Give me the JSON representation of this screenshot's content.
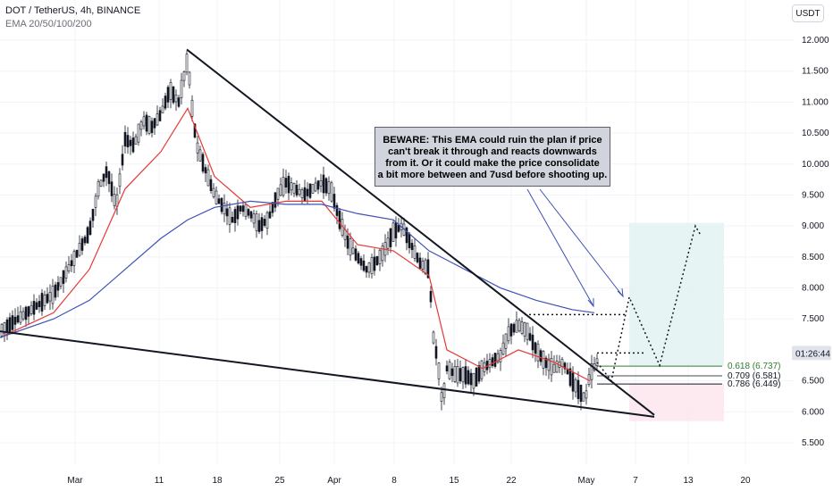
{
  "header": {
    "title": "DOT / TetherUS, 4h, BINANCE",
    "indicator": "EMA 20/50/100/200",
    "currency_button": "USDT"
  },
  "annotation": {
    "lines": [
      "BEWARE: This EMA could ruin the plan if price",
      "can't break it through and reacts downwards",
      " from it. Or it could make the price consolidate",
      " a bit more between and 7usd before shooting up."
    ]
  },
  "price_tag": {
    "label": "01:26:44",
    "color": "#e0e3eb"
  },
  "colors": {
    "candle_up": "#131722",
    "candle_down": "#131722",
    "ema_red": "#e53935",
    "ema_blue": "#3f51b5",
    "trendline": "#131722",
    "fib_green": "#2e7d32",
    "target_zone": "#e0f2f1",
    "stop_zone": "#fce4ec"
  },
  "chart_data": {
    "type": "candlestick",
    "title": "DOT / TetherUS, 4h, BINANCE",
    "y_axis": {
      "ticks": [
        "12.000",
        "11.500",
        "11.000",
        "10.500",
        "10.000",
        "9.500",
        "9.000",
        "8.500",
        "8.000",
        "7.500",
        "6.500",
        "6.000",
        "5.500"
      ],
      "range": [
        5.35,
        12.2
      ]
    },
    "x_axis": {
      "ticks": [
        "Mar",
        "11",
        "18",
        "25",
        "Apr",
        "8",
        "15",
        "22",
        "May",
        "7",
        "13",
        "20"
      ]
    },
    "price_path": [
      [
        0,
        7.3
      ],
      [
        20,
        7.5
      ],
      [
        40,
        7.7
      ],
      [
        60,
        7.9
      ],
      [
        80,
        8.4
      ],
      [
        100,
        8.9
      ],
      [
        110,
        9.6
      ],
      [
        120,
        9.9
      ],
      [
        130,
        9.3
      ],
      [
        140,
        10.4
      ],
      [
        150,
        10.3
      ],
      [
        160,
        10.7
      ],
      [
        170,
        10.6
      ],
      [
        180,
        10.8
      ],
      [
        190,
        11.2
      ],
      [
        200,
        11.0
      ],
      [
        210,
        11.7
      ],
      [
        215,
        10.9
      ],
      [
        220,
        10.3
      ],
      [
        230,
        9.9
      ],
      [
        240,
        9.5
      ],
      [
        250,
        9.3
      ],
      [
        260,
        9.1
      ],
      [
        270,
        9.3
      ],
      [
        280,
        9.2
      ],
      [
        290,
        9.0
      ],
      [
        300,
        9.1
      ],
      [
        310,
        9.5
      ],
      [
        320,
        9.7
      ],
      [
        330,
        9.6
      ],
      [
        340,
        9.5
      ],
      [
        350,
        9.6
      ],
      [
        360,
        9.7
      ],
      [
        370,
        9.6
      ],
      [
        380,
        9.1
      ],
      [
        390,
        8.7
      ],
      [
        400,
        8.5
      ],
      [
        410,
        8.3
      ],
      [
        420,
        8.4
      ],
      [
        430,
        8.6
      ],
      [
        440,
        8.9
      ],
      [
        450,
        9.0
      ],
      [
        460,
        8.7
      ],
      [
        470,
        8.4
      ],
      [
        480,
        8.3
      ],
      [
        485,
        7.2
      ],
      [
        490,
        6.8
      ],
      [
        495,
        6.1
      ],
      [
        500,
        6.7
      ],
      [
        510,
        6.6
      ],
      [
        520,
        6.6
      ],
      [
        530,
        6.5
      ],
      [
        540,
        6.7
      ],
      [
        550,
        6.8
      ],
      [
        560,
        6.9
      ],
      [
        570,
        7.3
      ],
      [
        580,
        7.4
      ],
      [
        590,
        7.3
      ],
      [
        600,
        7.0
      ],
      [
        610,
        6.8
      ],
      [
        620,
        6.7
      ],
      [
        630,
        6.8
      ],
      [
        640,
        6.5
      ],
      [
        650,
        6.3
      ],
      [
        655,
        6.2
      ],
      [
        660,
        6.6
      ],
      [
        668,
        6.8
      ]
    ],
    "ema_red": [
      [
        0,
        7.2
      ],
      [
        60,
        7.6
      ],
      [
        100,
        8.3
      ],
      [
        140,
        9.6
      ],
      [
        180,
        10.2
      ],
      [
        210,
        10.9
      ],
      [
        240,
        9.8
      ],
      [
        280,
        9.3
      ],
      [
        320,
        9.4
      ],
      [
        360,
        9.4
      ],
      [
        400,
        8.7
      ],
      [
        440,
        8.6
      ],
      [
        480,
        8.2
      ],
      [
        500,
        7.0
      ],
      [
        540,
        6.7
      ],
      [
        580,
        7.0
      ],
      [
        620,
        6.8
      ],
      [
        660,
        6.5
      ]
    ],
    "ema_blue": [
      [
        0,
        7.2
      ],
      [
        60,
        7.5
      ],
      [
        100,
        7.8
      ],
      [
        140,
        8.3
      ],
      [
        180,
        8.8
      ],
      [
        210,
        9.1
      ],
      [
        240,
        9.3
      ],
      [
        280,
        9.4
      ],
      [
        320,
        9.35
      ],
      [
        360,
        9.35
      ],
      [
        400,
        9.2
      ],
      [
        440,
        9.1
      ],
      [
        480,
        8.6
      ],
      [
        520,
        8.3
      ],
      [
        560,
        8.0
      ],
      [
        600,
        7.8
      ],
      [
        640,
        7.65
      ],
      [
        665,
        7.6
      ]
    ],
    "trend_lines": [
      {
        "from": [
          209,
          11.85
        ],
        "to": [
          732,
          5.95
        ]
      },
      {
        "from": [
          0,
          7.3
        ],
        "to": [
          732,
          5.92
        ]
      }
    ],
    "dotted_levels": [
      {
        "y": 7.57,
        "from": 587,
        "to": 700
      },
      {
        "y": 6.95,
        "from": 668,
        "to": 720
      }
    ],
    "projection_path": [
      [
        668,
        6.8
      ],
      [
        684,
        6.5
      ],
      [
        704,
        7.85
      ],
      [
        738,
        6.75
      ],
      [
        778,
        9.0
      ],
      [
        784,
        8.85
      ]
    ],
    "target_zone": {
      "x": [
        704,
        810
      ],
      "y": [
        6.737,
        9.05
      ]
    },
    "stop_zone": {
      "x": [
        704,
        810
      ],
      "y": [
        5.85,
        6.449
      ]
    },
    "fib_levels": [
      {
        "label": "0.618 (6.737)",
        "value": 6.737
      },
      {
        "label": "0.709 (6.581)",
        "value": 6.581
      },
      {
        "label": "0.786 (6.449)",
        "value": 6.449
      }
    ],
    "current_price": 6.95,
    "series": []
  }
}
